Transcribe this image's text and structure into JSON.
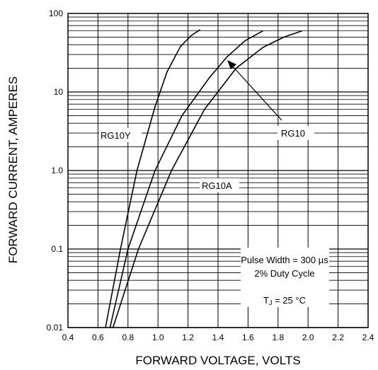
{
  "chart_data": {
    "type": "line",
    "xlabel": "FORWARD VOLTAGE, VOLTS",
    "ylabel": "FORWARD CURRENT, AMPERES",
    "xlim": [
      0.4,
      2.4
    ],
    "ylim": [
      0.01,
      100
    ],
    "y_scale": "log",
    "grid": true,
    "x_ticks": [
      "0.4",
      "0.6",
      "0.8",
      "1.0",
      "1.2",
      "1.4",
      "1.6",
      "1.8",
      "2.0",
      "2.2",
      "2.4"
    ],
    "y_ticks": [
      {
        "value": 100,
        "label": "100"
      },
      {
        "value": 10,
        "label": "10"
      },
      {
        "value": 1,
        "label": "1.0"
      },
      {
        "value": 0.1,
        "label": "0.1"
      },
      {
        "value": 0.01,
        "label": "0.01"
      }
    ],
    "series": [
      {
        "name": "RG10Y",
        "points": [
          [
            0.65,
            0.01
          ],
          [
            0.75,
            0.1
          ],
          [
            0.86,
            1.0
          ],
          [
            0.98,
            6.5
          ],
          [
            1.06,
            18
          ],
          [
            1.15,
            38
          ],
          [
            1.22,
            52
          ],
          [
            1.28,
            62
          ]
        ]
      },
      {
        "name": "RG10",
        "points": [
          [
            0.68,
            0.01
          ],
          [
            0.8,
            0.1
          ],
          [
            0.98,
            1.0
          ],
          [
            1.16,
            5.0
          ],
          [
            1.34,
            15
          ],
          [
            1.46,
            28
          ],
          [
            1.58,
            45
          ],
          [
            1.7,
            60
          ]
        ]
      },
      {
        "name": "RG10A",
        "points": [
          [
            0.7,
            0.01
          ],
          [
            0.87,
            0.1
          ],
          [
            1.09,
            1.0
          ],
          [
            1.31,
            6.0
          ],
          [
            1.52,
            20
          ],
          [
            1.7,
            37
          ],
          [
            1.84,
            50
          ],
          [
            1.96,
            60
          ]
        ]
      }
    ],
    "annotations": {
      "series_labels": [
        "RG10Y",
        "RG10",
        "RG10A"
      ],
      "pulse_width": "Pulse Width = 300 µs",
      "duty_cycle": "2% Duty Cycle",
      "tj_prefix": "T",
      "tj_sub": "J",
      "tj_value": " = 25 °C"
    }
  }
}
